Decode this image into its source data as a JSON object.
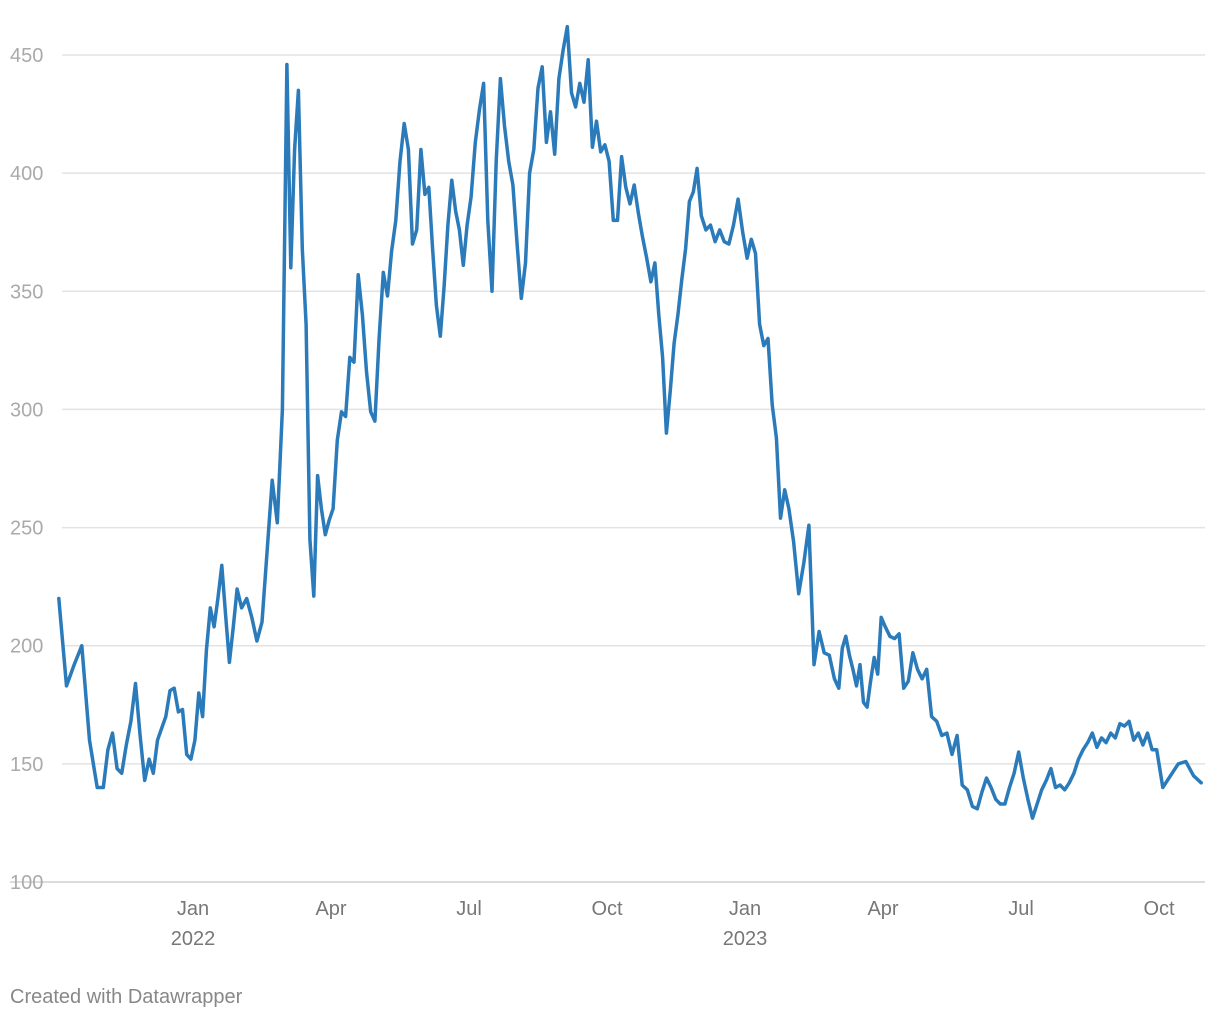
{
  "chart_data": {
    "type": "line",
    "color": "#2b7bba",
    "credit": "Created with Datawrapper",
    "grid": true,
    "ylim": [
      100,
      450
    ],
    "yticks": [
      100,
      150,
      200,
      250,
      300,
      350,
      400,
      450
    ],
    "xlim": [
      "2021-10",
      "2023-10"
    ],
    "xticks": [
      {
        "value": "2022-01",
        "label": "Jan",
        "year": "2022"
      },
      {
        "value": "2022-04",
        "label": "Apr"
      },
      {
        "value": "2022-07",
        "label": "Jul"
      },
      {
        "value": "2022-10",
        "label": "Oct"
      },
      {
        "value": "2023-01",
        "label": "Jan",
        "year": "2023"
      },
      {
        "value": "2023-04",
        "label": "Apr"
      },
      {
        "value": "2023-07",
        "label": "Jul"
      },
      {
        "value": "2023-10",
        "label": "Oct"
      }
    ],
    "months": [
      {
        "x": "2021-10",
        "values": [
          220,
          183,
          192,
          200,
          160,
          140
        ]
      },
      {
        "x": "2021-11",
        "values": [
          140,
          156,
          163,
          148,
          146,
          158,
          168,
          184,
          162,
          143
        ]
      },
      {
        "x": "2021-12",
        "values": [
          152,
          146,
          160,
          165,
          170,
          181,
          182,
          172,
          173,
          154,
          152
        ]
      },
      {
        "x": "2022-01",
        "values": [
          160,
          180,
          170,
          198,
          216,
          208,
          220,
          234,
          213,
          193,
          208,
          224
        ]
      },
      {
        "x": "2022-02",
        "values": [
          216,
          220,
          212,
          202,
          210,
          240,
          270,
          252,
          300
        ]
      },
      {
        "x": "2022-03",
        "values": [
          446,
          360,
          410,
          435,
          368,
          336,
          245,
          221,
          272,
          258,
          247,
          253
        ]
      },
      {
        "x": "2022-04",
        "values": [
          258,
          287,
          299,
          297,
          322,
          320,
          357,
          340,
          316,
          299,
          295
        ]
      },
      {
        "x": "2022-05",
        "values": [
          330,
          358,
          348,
          367,
          380,
          405,
          421,
          410,
          370,
          376,
          410
        ]
      },
      {
        "x": "2022-06",
        "values": [
          391,
          394,
          368,
          344,
          331,
          352,
          378,
          397,
          384,
          376,
          361,
          378
        ]
      },
      {
        "x": "2022-07",
        "values": [
          390,
          413,
          427,
          438,
          380,
          350,
          405,
          440,
          420,
          405,
          395
        ]
      },
      {
        "x": "2022-08",
        "values": [
          370,
          347,
          362,
          400,
          410,
          436,
          445,
          413,
          426,
          408,
          440
        ]
      },
      {
        "x": "2022-09",
        "values": [
          452,
          462,
          434,
          428,
          438,
          430,
          448,
          411,
          422,
          409,
          412
        ]
      },
      {
        "x": "2022-10",
        "values": [
          405,
          380,
          380,
          407,
          394,
          387,
          395,
          383,
          373,
          364,
          354
        ]
      },
      {
        "x": "2022-11",
        "values": [
          362,
          340,
          322,
          290,
          308,
          328,
          340,
          355,
          368,
          388,
          392,
          402
        ]
      },
      {
        "x": "2022-12",
        "values": [
          382,
          376,
          378,
          371,
          376,
          371,
          370,
          378,
          389,
          375
        ]
      },
      {
        "x": "2023-01",
        "values": [
          364,
          372,
          366,
          336,
          327,
          330,
          302,
          288,
          254,
          266,
          258
        ]
      },
      {
        "x": "2023-02",
        "values": [
          244,
          222,
          235,
          251,
          192,
          206,
          197,
          196,
          186
        ]
      },
      {
        "x": "2023-03",
        "values": [
          182,
          199,
          204,
          196,
          190,
          183,
          192,
          176,
          174,
          185,
          195,
          188,
          212
        ]
      },
      {
        "x": "2023-04",
        "values": [
          208,
          204,
          203,
          205,
          182,
          185,
          197,
          190,
          186,
          190
        ]
      },
      {
        "x": "2023-05",
        "values": [
          170,
          168,
          162,
          163,
          154,
          162,
          141,
          139,
          132
        ]
      },
      {
        "x": "2023-06",
        "values": [
          131,
          138,
          144,
          140,
          135,
          133,
          133,
          140,
          146,
          155
        ]
      },
      {
        "x": "2023-07",
        "values": [
          144,
          135,
          127,
          133,
          139,
          143,
          148,
          140,
          141,
          139
        ]
      },
      {
        "x": "2023-08",
        "values": [
          142,
          146,
          152,
          156,
          159,
          163,
          157,
          161,
          159,
          163
        ]
      },
      {
        "x": "2023-09",
        "values": [
          161,
          167,
          166,
          168,
          160,
          163,
          158,
          163,
          156,
          156
        ]
      },
      {
        "x": "2023-10",
        "values": [
          140,
          145,
          150,
          151,
          145,
          142
        ]
      }
    ]
  }
}
